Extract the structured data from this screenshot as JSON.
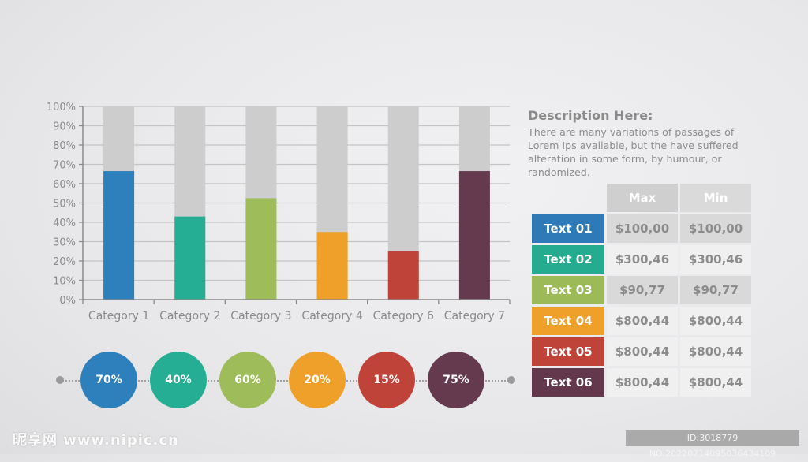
{
  "chart_data": {
    "type": "bar",
    "title": "",
    "xlabel": "",
    "ylabel": "",
    "ylim": [
      0,
      100
    ],
    "y_ticks": [
      "0%",
      "10%",
      "20%",
      "30%",
      "40%",
      "50%",
      "60%",
      "70%",
      "80%",
      "90%",
      "100%"
    ],
    "grid": true,
    "categories": [
      "Category 1",
      "Category 2",
      "Category 3",
      "Category 4",
      "Category 6",
      "Category 7"
    ],
    "values": [
      66.5,
      43,
      52.5,
      35,
      25,
      66.5
    ],
    "background_value": 100,
    "colors": [
      "#2e80bc",
      "#25ae93",
      "#9ebc5a",
      "#efa02a",
      "#c0433a",
      "#653a4e"
    ],
    "background_color": "#cdcdcd"
  },
  "circles": [
    {
      "label": "70%",
      "color": "#2e80bc"
    },
    {
      "label": "40%",
      "color": "#25ae93"
    },
    {
      "label": "60%",
      "color": "#9ebc5a"
    },
    {
      "label": "20%",
      "color": "#efa02a"
    },
    {
      "label": "15%",
      "color": "#c0433a"
    },
    {
      "label": "75%",
      "color": "#653a4e"
    }
  ],
  "description": {
    "title": "Description Here:",
    "body": "There are many variations of passages  of Lorem Ips available, but the have suffered alteration in some  form, by humour, or randomized."
  },
  "table": {
    "headers": [
      "Max",
      "Min"
    ],
    "rows": [
      {
        "label": "Text 01",
        "color": "#2e7ab8",
        "max": "$100,00",
        "min": "$100,00",
        "shade": "dark"
      },
      {
        "label": "Text 02",
        "color": "#25ab90",
        "max": "$300,46",
        "min": "$300,46",
        "shade": "light"
      },
      {
        "label": "Text 03",
        "color": "#9cba58",
        "max": "$90,77",
        "min": "$90,77",
        "shade": "dark"
      },
      {
        "label": "Text 04",
        "color": "#efa02a",
        "max": "$800,44",
        "min": "$800,44",
        "shade": "light"
      },
      {
        "label": "Text 05",
        "color": "#c0433a",
        "max": "$800,44",
        "min": "$800,44",
        "shade": "light"
      },
      {
        "label": "Text 06",
        "color": "#64384c",
        "max": "$800,44",
        "min": "$800,44",
        "shade": "light"
      }
    ]
  },
  "watermark": {
    "left": "昵享网 www.nipic.cn",
    "right": "ID:3018779 NO:20220714095036434109"
  }
}
